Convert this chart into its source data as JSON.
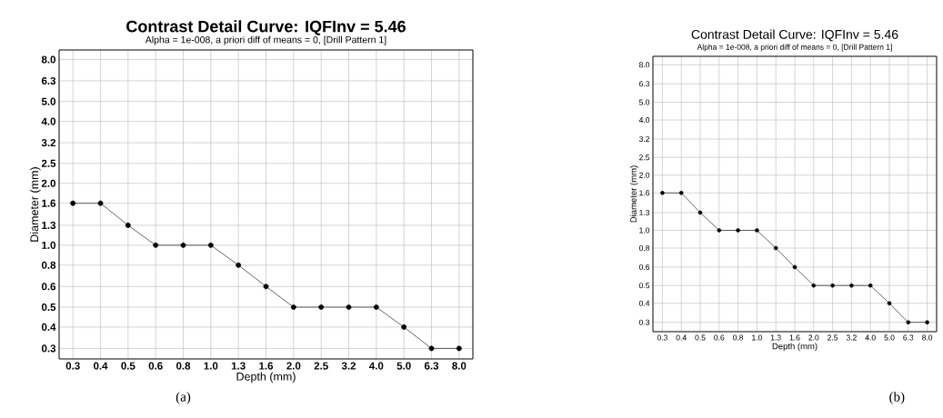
{
  "chart_data": [
    {
      "type": "line",
      "title": "Contrast Detail Curve: IQFInv = 5.46",
      "subtitle": "Alpha = 1e-008, a priori diff of means = 0, [Drill Pattern 1]",
      "xlabel": "Depth (mm)",
      "ylabel": "Diameter (mm)",
      "categories": [
        "0.3",
        "0.4",
        "0.5",
        "0.6",
        "0.8",
        "1.0",
        "1.3",
        "1.6",
        "2.0",
        "2.5",
        "3.2",
        "4.0",
        "5.0",
        "6.3",
        "8.0"
      ],
      "series": [
        {
          "color": "#000000",
          "values": [
            1.6,
            1.6,
            1.25,
            1.0,
            1.0,
            1.0,
            0.8,
            0.63,
            0.5,
            0.5,
            0.5,
            0.5,
            0.4,
            0.315,
            0.315
          ]
        }
      ],
      "log": "y",
      "ylim": [
        0.28,
        8.9
      ],
      "yticks": [
        {
          "value": 0.315,
          "label": "0.3"
        },
        0.4,
        0.5,
        {
          "value": 0.63,
          "label": "0.6"
        },
        0.8,
        {
          "value": 1.0,
          "label": "1.0"
        },
        {
          "value": 1.25,
          "label": "1.3"
        },
        1.6,
        {
          "value": 2.0,
          "label": "2.0"
        },
        2.5,
        {
          "value": 3.15,
          "label": "3.2"
        },
        {
          "value": 4.0,
          "label": "4.0"
        },
        {
          "value": 5.0,
          "label": "5.0"
        },
        6.3,
        {
          "value": 8.0,
          "label": "8.0"
        }
      ],
      "grid": true,
      "marker": "circle",
      "line_style": "solid",
      "annotations": [
        "(a)"
      ]
    },
    {
      "type": "line",
      "title": "Contrast Detail Curve: IQFInv = 5.46",
      "subtitle": "Alpha = 1e-008, a priori diff of means = 0, [Drill Pattern 1]",
      "xlabel": "Depth (mm)",
      "ylabel": "Diameter (mm)",
      "categories": [
        "0.3",
        "0.4",
        "0.5",
        "0.6",
        "0.8",
        "1.0",
        "1.3",
        "1.6",
        "2.0",
        "2.5",
        "3.2",
        "4.0",
        "5.0",
        "6.3",
        "8.0"
      ],
      "series": [
        {
          "color": "#000000",
          "values": [
            1.6,
            1.6,
            1.25,
            1.0,
            1.0,
            1.0,
            0.8,
            0.63,
            0.5,
            0.5,
            0.5,
            0.5,
            0.4,
            0.315,
            0.315
          ]
        }
      ],
      "log": "y",
      "ylim": [
        0.28,
        8.9
      ],
      "yticks": [
        {
          "value": 0.315,
          "label": "0.3"
        },
        0.4,
        0.5,
        {
          "value": 0.63,
          "label": "0.6"
        },
        0.8,
        {
          "value": 1.0,
          "label": "1.0"
        },
        {
          "value": 1.25,
          "label": "1.3"
        },
        1.6,
        {
          "value": 2.0,
          "label": "2.0"
        },
        2.5,
        {
          "value": 3.15,
          "label": "3.2"
        },
        {
          "value": 4.0,
          "label": "4.0"
        },
        {
          "value": 5.0,
          "label": "5.0"
        },
        6.3,
        {
          "value": 8.0,
          "label": "8.0"
        }
      ],
      "grid": true,
      "marker": "circle",
      "line_style": "solid",
      "annotations": [
        "(b)"
      ]
    }
  ]
}
